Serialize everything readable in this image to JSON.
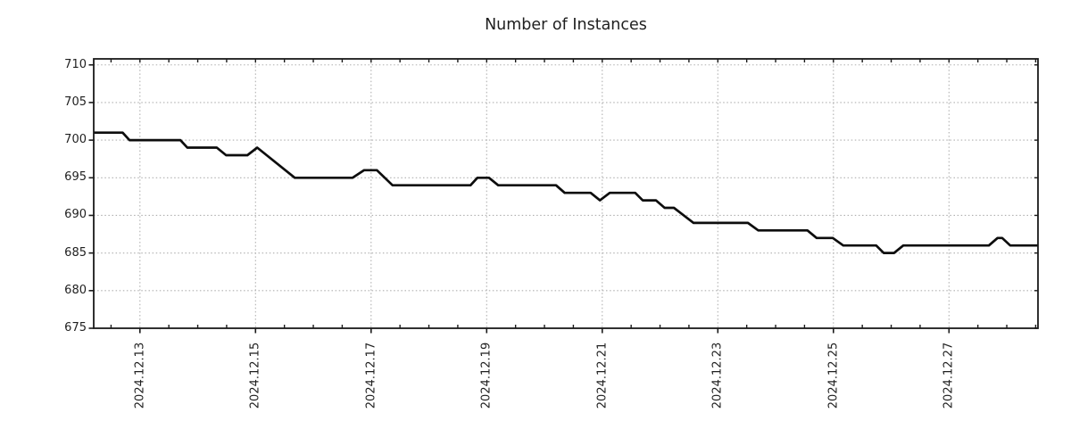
{
  "chart_data": {
    "type": "line",
    "title": "Number of Instances",
    "x_axis": {
      "day_zero_date": "2024-12-12",
      "tick_labels": [
        "2024.12.13",
        "2024.12.15",
        "2024.12.17",
        "2024.12.19",
        "2024.12.21",
        "2024.12.23",
        "2024.12.25",
        "2024.12.27"
      ],
      "tick_days": [
        1,
        3,
        5,
        7,
        9,
        11,
        13,
        15
      ],
      "minor_tick_step_days": 0.5,
      "xlim_days": [
        0.2,
        16.54
      ],
      "label_rotation_deg": 90
    },
    "y_axis": {
      "tick_labels": [
        "710",
        "705",
        "700",
        "695",
        "690",
        "685",
        "680",
        "675"
      ],
      "tick_values": [
        710,
        705,
        700,
        695,
        690,
        685,
        680,
        675
      ],
      "ylim": [
        675,
        710.8
      ],
      "grid": true
    },
    "grid": "dotted-major-both-axes",
    "legend": "none",
    "series": [
      {
        "name": "instances",
        "color": "#0d0d0d",
        "points_day_value": [
          [
            0.2,
            701
          ],
          [
            0.7,
            701
          ],
          [
            0.82,
            700
          ],
          [
            1.7,
            700
          ],
          [
            1.82,
            699
          ],
          [
            2.33,
            699
          ],
          [
            2.49,
            698
          ],
          [
            2.86,
            698
          ],
          [
            3.03,
            699
          ],
          [
            3.68,
            695
          ],
          [
            4.68,
            695
          ],
          [
            4.88,
            696
          ],
          [
            5.1,
            696
          ],
          [
            5.37,
            694
          ],
          [
            6.72,
            694
          ],
          [
            6.84,
            695
          ],
          [
            7.04,
            695
          ],
          [
            7.2,
            694
          ],
          [
            8.2,
            694
          ],
          [
            8.35,
            693
          ],
          [
            8.8,
            693
          ],
          [
            8.96,
            692
          ],
          [
            9.13,
            693
          ],
          [
            9.57,
            693
          ],
          [
            9.7,
            692
          ],
          [
            9.93,
            692
          ],
          [
            10.08,
            691
          ],
          [
            10.24,
            691
          ],
          [
            10.58,
            689
          ],
          [
            11.52,
            689
          ],
          [
            11.7,
            688
          ],
          [
            12.55,
            688
          ],
          [
            12.71,
            687
          ],
          [
            12.99,
            687
          ],
          [
            13.17,
            686
          ],
          [
            13.74,
            686
          ],
          [
            13.87,
            685
          ],
          [
            14.05,
            685
          ],
          [
            14.21,
            686
          ],
          [
            15.69,
            686
          ],
          [
            15.84,
            687
          ],
          [
            15.92,
            687
          ],
          [
            16.06,
            686
          ],
          [
            16.54,
            686
          ]
        ]
      }
    ]
  },
  "colors": {
    "background": "#ffffff",
    "line": "#0d0d0d",
    "grid": "#b0b0b0",
    "spine": "#1a1a1a",
    "text": "#1f1f1f"
  }
}
